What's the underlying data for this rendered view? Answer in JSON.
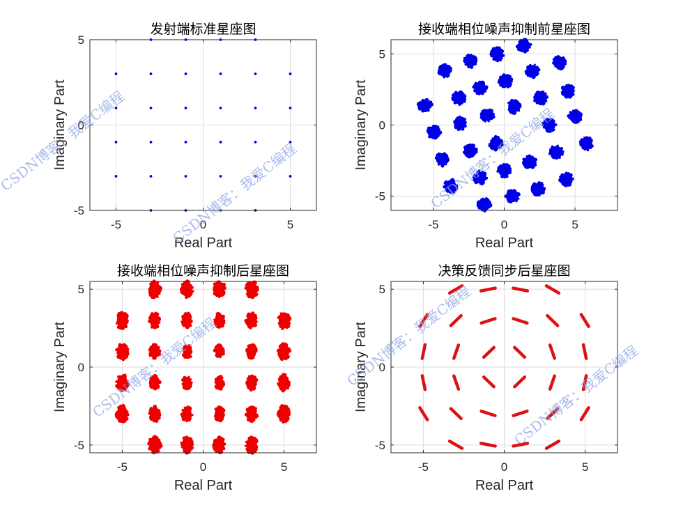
{
  "chart_data": [
    {
      "type": "scatter",
      "title": "发射端标准星座图",
      "xlabel": "Real Part",
      "ylabel": "Imaginary Part",
      "xlim": [
        -6.5,
        6.5
      ],
      "ylim": [
        -5,
        5
      ],
      "xticks": [
        -5,
        0,
        5
      ],
      "yticks": [
        -5,
        0,
        5
      ],
      "grid": true,
      "color": "#0000e6",
      "marker": "dot",
      "series": [
        {
          "name": "points",
          "points": [
            [
              -3,
              5
            ],
            [
              -1,
              5
            ],
            [
              1,
              5
            ],
            [
              3,
              5
            ],
            [
              -5,
              3
            ],
            [
              -3,
              3
            ],
            [
              -1,
              3
            ],
            [
              1,
              3
            ],
            [
              3,
              3
            ],
            [
              5,
              3
            ],
            [
              -5,
              1
            ],
            [
              -3,
              1
            ],
            [
              -1,
              1
            ],
            [
              1,
              1
            ],
            [
              3,
              1
            ],
            [
              5,
              1
            ],
            [
              -5,
              -1
            ],
            [
              -3,
              -1
            ],
            [
              -1,
              -1
            ],
            [
              1,
              -1
            ],
            [
              3,
              -1
            ],
            [
              5,
              -1
            ],
            [
              -5,
              -3
            ],
            [
              -3,
              -3
            ],
            [
              -1,
              -3
            ],
            [
              1,
              -3
            ],
            [
              3,
              -3
            ],
            [
              5,
              -3
            ],
            [
              -3,
              -5
            ],
            [
              -1,
              -5
            ],
            [
              1,
              -5
            ],
            [
              3,
              -5
            ]
          ]
        }
      ]
    },
    {
      "type": "scatter",
      "title": "接收端相位噪声抑制前星座图",
      "xlabel": "Real Part",
      "ylabel": "Imaginary Part",
      "xlim": [
        -8,
        8
      ],
      "ylim": [
        -6,
        6
      ],
      "xticks": [
        -5,
        0,
        5
      ],
      "yticks": [
        -5,
        0,
        5
      ],
      "grid": true,
      "color": "#0000e6",
      "marker": "cluster",
      "series": [
        {
          "name": "clusters",
          "points": [
            [
              -0.5,
              5.0
            ],
            [
              1.4,
              5.6
            ],
            [
              -2.4,
              4.5
            ],
            [
              2.0,
              3.8
            ],
            [
              -4.2,
              3.8
            ],
            [
              3.9,
              4.4
            ],
            [
              -1.7,
              2.6
            ],
            [
              0.1,
              3.1
            ],
            [
              -3.2,
              1.9
            ],
            [
              2.6,
              1.9
            ],
            [
              4.5,
              2.4
            ],
            [
              -5.6,
              1.4
            ],
            [
              -1.2,
              0.7
            ],
            [
              0.7,
              1.3
            ],
            [
              -3.1,
              0.1
            ],
            [
              3.2,
              0.0
            ],
            [
              5.0,
              0.6
            ],
            [
              -5.0,
              -0.5
            ],
            [
              -2.4,
              -1.8
            ],
            [
              -0.6,
              -1.3
            ],
            [
              1.8,
              -2.6
            ],
            [
              3.7,
              -1.9
            ],
            [
              -4.4,
              -2.4
            ],
            [
              5.8,
              -1.3
            ],
            [
              -1.7,
              -3.7
            ],
            [
              0.0,
              -3.2
            ],
            [
              2.4,
              -4.5
            ],
            [
              -3.8,
              -4.3
            ],
            [
              4.4,
              -3.8
            ],
            [
              -1.4,
              -5.6
            ],
            [
              0.6,
              -5.0
            ]
          ]
        }
      ]
    },
    {
      "type": "scatter",
      "title": "接收端相位噪声抑制后星座图",
      "xlabel": "Real Part",
      "ylabel": "Imaginary Part",
      "xlim": [
        -7,
        7
      ],
      "ylim": [
        -5.5,
        5.5
      ],
      "xticks": [
        -5,
        0,
        5
      ],
      "yticks": [
        -5,
        0,
        5
      ],
      "grid": true,
      "color": "#ee0000",
      "marker": "cluster",
      "series": [
        {
          "name": "clusters",
          "points": [
            [
              -3,
              5
            ],
            [
              -1,
              5
            ],
            [
              1,
              5
            ],
            [
              3,
              5
            ],
            [
              -5,
              3
            ],
            [
              -3,
              3
            ],
            [
              -1,
              3
            ],
            [
              1,
              3
            ],
            [
              3,
              3
            ],
            [
              5,
              3
            ],
            [
              -5,
              1
            ],
            [
              -3,
              1
            ],
            [
              -1,
              1
            ],
            [
              1,
              1
            ],
            [
              3,
              1
            ],
            [
              5,
              1
            ],
            [
              -5,
              -1
            ],
            [
              -3,
              -1
            ],
            [
              -1,
              -1
            ],
            [
              1,
              -1
            ],
            [
              3,
              -1
            ],
            [
              5,
              -1
            ],
            [
              -5,
              -3
            ],
            [
              -3,
              -3
            ],
            [
              -1,
              -3
            ],
            [
              1,
              -3
            ],
            [
              3,
              -3
            ],
            [
              5,
              -3
            ],
            [
              -3,
              -5
            ],
            [
              -1,
              -5
            ],
            [
              1,
              -5
            ],
            [
              3,
              -5
            ]
          ]
        }
      ]
    },
    {
      "type": "scatter",
      "title": "决策反馈同步后星座图",
      "xlabel": "Real Part",
      "ylabel": "Imaginary Part",
      "xlim": [
        -7,
        7
      ],
      "ylim": [
        -5.5,
        5.5
      ],
      "xticks": [
        -5,
        0,
        5
      ],
      "yticks": [
        -5,
        0,
        5
      ],
      "grid": true,
      "color": "#dd1111",
      "marker": "arc",
      "series": [
        {
          "name": "arcs",
          "points": [
            [
              -3,
              5
            ],
            [
              -1,
              5
            ],
            [
              1,
              5
            ],
            [
              3,
              5
            ],
            [
              -5,
              3
            ],
            [
              -3,
              3
            ],
            [
              -1,
              3
            ],
            [
              1,
              3
            ],
            [
              3,
              3
            ],
            [
              5,
              3
            ],
            [
              -5,
              1
            ],
            [
              -3,
              1
            ],
            [
              -1,
              1
            ],
            [
              1,
              1
            ],
            [
              3,
              1
            ],
            [
              5,
              1
            ],
            [
              -5,
              -1
            ],
            [
              -3,
              -1
            ],
            [
              -1,
              -1
            ],
            [
              1,
              -1
            ],
            [
              3,
              -1
            ],
            [
              5,
              -1
            ],
            [
              -5,
              -3
            ],
            [
              -3,
              -3
            ],
            [
              -1,
              -3
            ],
            [
              1,
              -3
            ],
            [
              3,
              -3
            ],
            [
              5,
              -3
            ],
            [
              -3,
              -5
            ],
            [
              -1,
              -5
            ],
            [
              1,
              -5
            ],
            [
              3,
              -5
            ]
          ]
        }
      ]
    }
  ],
  "watermark": "CSDN博客：我爱C编程"
}
